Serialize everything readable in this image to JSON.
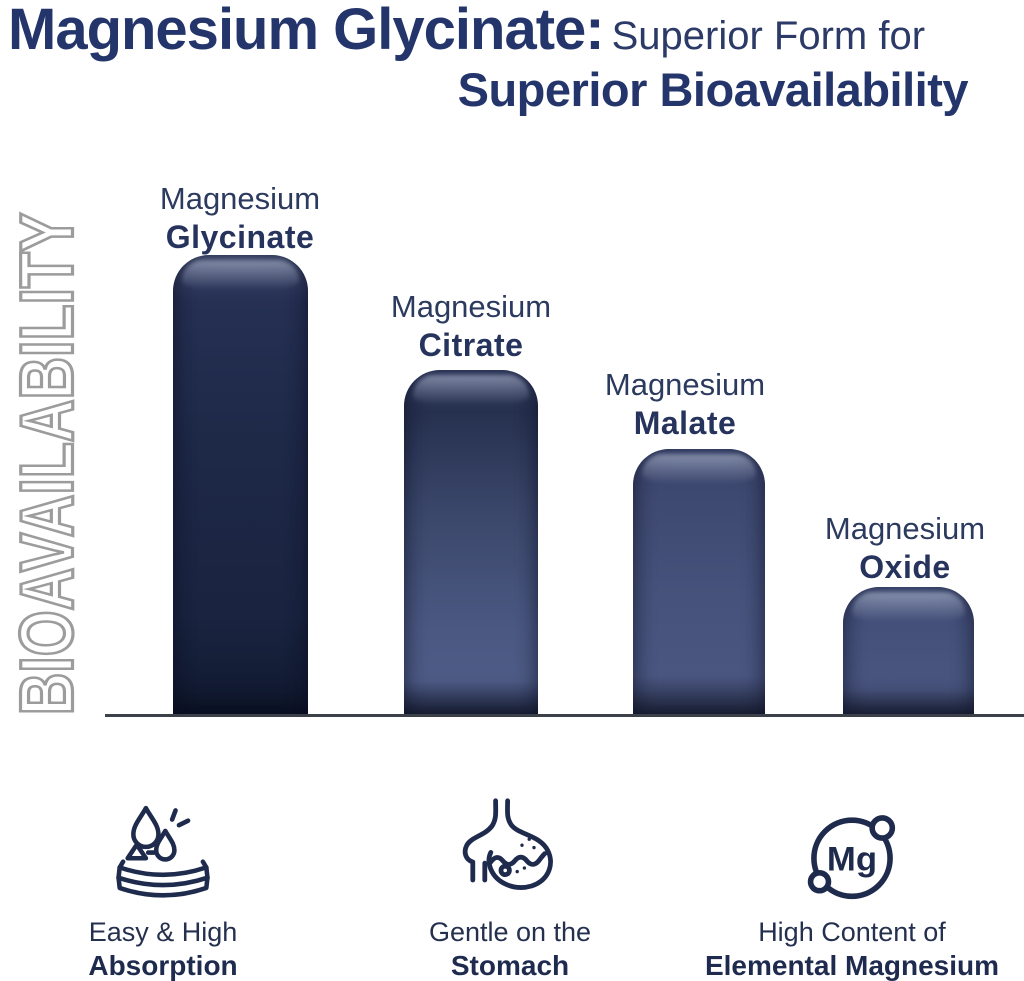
{
  "title": {
    "bold": "Magnesium Glycinate:",
    "light": "Superior Form for",
    "line2": "Superior Bioavailability"
  },
  "y_axis_label": "BIOAVAILABILITY",
  "chart_data": {
    "type": "bar",
    "categories": [
      "Magnesium Glycinate",
      "Magnesium Citrate",
      "Magnesium Malate",
      "Magnesium Oxide"
    ],
    "values": [
      100,
      75,
      58,
      28
    ],
    "value_note": "relative bar heights, % of tallest bar (no numeric axis shown)",
    "title": "Magnesium Glycinate: Superior Form for Superior Bioavailability",
    "xlabel": "",
    "ylabel": "BIOAVAILABILITY",
    "ylim": [
      0,
      100
    ],
    "grid": false,
    "legend": false,
    "bar_colors": [
      "#1e2948",
      "#46527b",
      "#46527b",
      "#4a5680"
    ]
  },
  "bar_labels": [
    {
      "line1": "Magnesium",
      "line2": "Glycinate"
    },
    {
      "line1": "Magnesium",
      "line2": "Citrate"
    },
    {
      "line1": "Magnesium",
      "line2": "Malate"
    },
    {
      "line1": "Magnesium",
      "line2": "Oxide"
    }
  ],
  "features": [
    {
      "icon": "absorption-drops-icon",
      "line1": "Easy & High",
      "line2": "Absorption"
    },
    {
      "icon": "stomach-icon",
      "line1": "Gentle on the",
      "line2": "Stomach"
    },
    {
      "icon": "mg-atom-icon",
      "symbol": "Mg",
      "line1": "High Content of",
      "line2": "Elemental Magnesium"
    }
  ],
  "colors": {
    "title_navy": "#24356b",
    "text_navy": "#26335c",
    "icon_navy": "#1f2b4d",
    "bar_dark_navy": "#1e2948",
    "bar_slate_blue": "#46527b",
    "outline_gray": "#9c9c9c",
    "baseline_gray": "#3b4049",
    "background": "#ffffff"
  }
}
